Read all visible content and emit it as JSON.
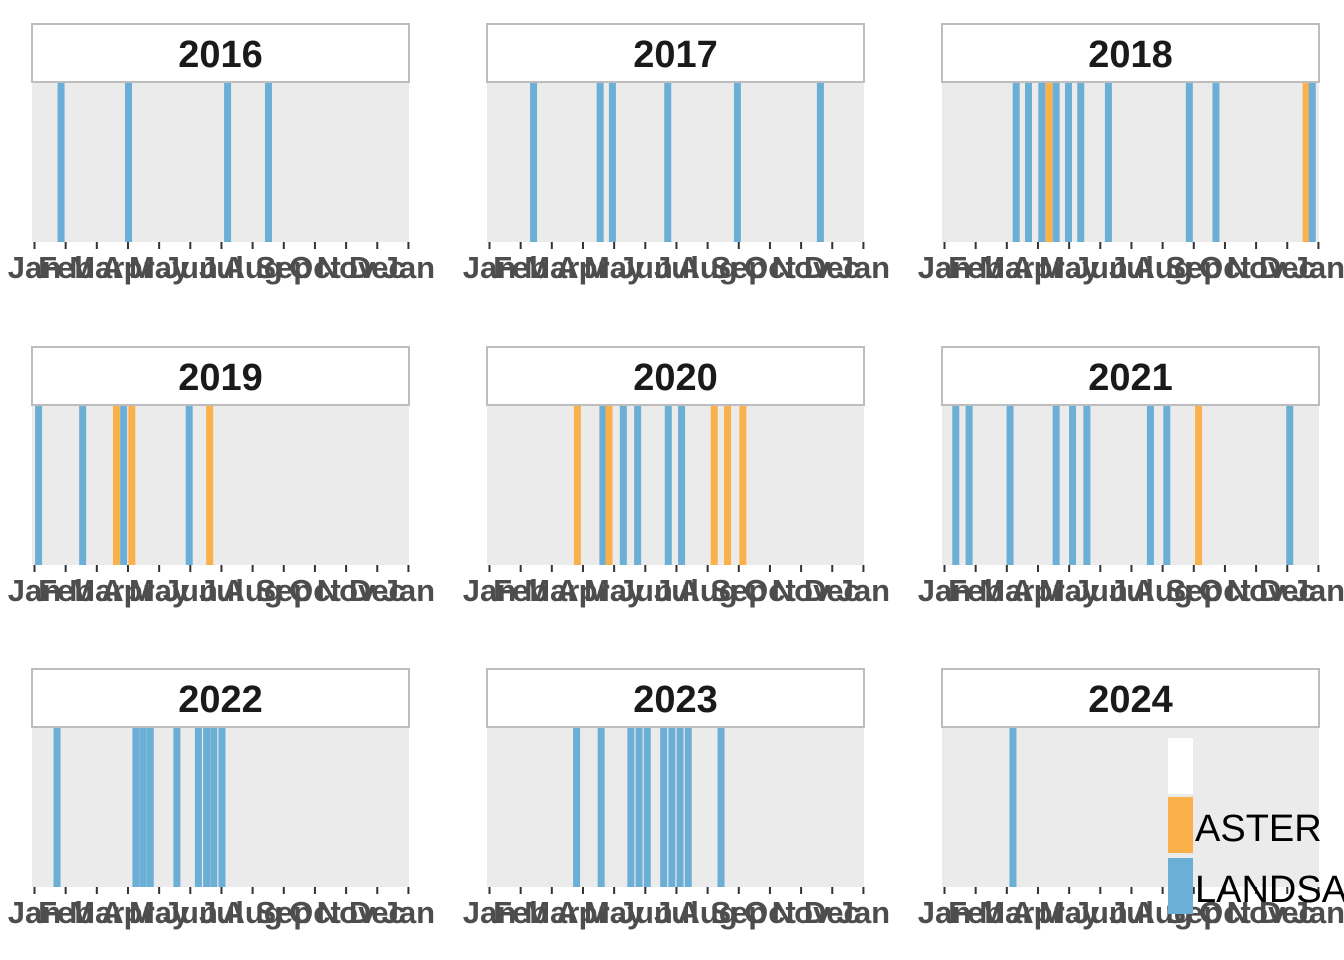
{
  "chart_data": {
    "type": "bar",
    "facet_by": "year",
    "x_tick_labels": [
      "Jan",
      "Feb",
      "Mar",
      "Apr",
      "May",
      "Jun",
      "Jul",
      "Aug",
      "Sep",
      "Oct",
      "Nov",
      "Dec",
      "Jan"
    ],
    "colors": {
      "panel_bg": "#ebebeb",
      "strip_bg": "#ffffff",
      "strip_border": "#bdbdbd",
      "ASTER": "#fbb14b",
      "LANDSAT": "#6baed6",
      "tick": "#333333",
      "tick_label": "#4d4d4d"
    },
    "legend": {
      "placement": "bottom-right",
      "entries": [
        {
          "name": "",
          "color": "#ffffff"
        },
        {
          "name": "ASTER",
          "color": "#fbb14b"
        },
        {
          "name": "LANDSAT",
          "color": "#6baed6"
        }
      ]
    },
    "panels": [
      {
        "year": "2016",
        "acquisitions": [
          {
            "date": "2016-01-27",
            "sensor": "LANDSAT"
          },
          {
            "date": "2016-04-02",
            "sensor": "LANDSAT"
          },
          {
            "date": "2016-07-08",
            "sensor": "LANDSAT"
          },
          {
            "date": "2016-08-17",
            "sensor": "LANDSAT"
          }
        ]
      },
      {
        "year": "2017",
        "acquisitions": [
          {
            "date": "2017-02-13",
            "sensor": "LANDSAT"
          },
          {
            "date": "2017-04-19",
            "sensor": "LANDSAT"
          },
          {
            "date": "2017-05-01",
            "sensor": "LANDSAT"
          },
          {
            "date": "2017-06-24",
            "sensor": "LANDSAT"
          },
          {
            "date": "2017-08-31",
            "sensor": "LANDSAT"
          },
          {
            "date": "2017-11-20",
            "sensor": "LANDSAT"
          }
        ]
      },
      {
        "year": "2018",
        "acquisitions": [
          {
            "date": "2018-03-12",
            "sensor": "LANDSAT"
          },
          {
            "date": "2018-03-24",
            "sensor": "LANDSAT"
          },
          {
            "date": "2018-04-06",
            "sensor": "LANDSAT"
          },
          {
            "date": "2018-04-13",
            "sensor": "ASTER"
          },
          {
            "date": "2018-04-20",
            "sensor": "LANDSAT"
          },
          {
            "date": "2018-05-02",
            "sensor": "LANDSAT"
          },
          {
            "date": "2018-05-14",
            "sensor": "LANDSAT"
          },
          {
            "date": "2018-06-10",
            "sensor": "LANDSAT"
          },
          {
            "date": "2018-08-28",
            "sensor": "LANDSAT"
          },
          {
            "date": "2018-09-23",
            "sensor": "LANDSAT"
          },
          {
            "date": "2018-12-20",
            "sensor": "ASTER"
          },
          {
            "date": "2018-12-26",
            "sensor": "LANDSAT"
          }
        ]
      },
      {
        "year": "2019",
        "acquisitions": [
          {
            "date": "2019-01-05",
            "sensor": "LANDSAT"
          },
          {
            "date": "2019-02-17",
            "sensor": "LANDSAT"
          },
          {
            "date": "2019-03-22",
            "sensor": "ASTER"
          },
          {
            "date": "2019-03-29",
            "sensor": "LANDSAT"
          },
          {
            "date": "2019-04-06",
            "sensor": "ASTER"
          },
          {
            "date": "2019-06-01",
            "sensor": "LANDSAT"
          },
          {
            "date": "2019-06-21",
            "sensor": "ASTER"
          }
        ]
      },
      {
        "year": "2020",
        "acquisitions": [
          {
            "date": "2020-03-27",
            "sensor": "ASTER"
          },
          {
            "date": "2020-04-21",
            "sensor": "LANDSAT"
          },
          {
            "date": "2020-04-27",
            "sensor": "ASTER"
          },
          {
            "date": "2020-05-11",
            "sensor": "LANDSAT"
          },
          {
            "date": "2020-05-25",
            "sensor": "LANDSAT"
          },
          {
            "date": "2020-06-24",
            "sensor": "LANDSAT"
          },
          {
            "date": "2020-07-07",
            "sensor": "LANDSAT"
          },
          {
            "date": "2020-08-08",
            "sensor": "ASTER"
          },
          {
            "date": "2020-08-21",
            "sensor": "ASTER"
          },
          {
            "date": "2020-09-05",
            "sensor": "ASTER"
          }
        ]
      },
      {
        "year": "2021",
        "acquisitions": [
          {
            "date": "2021-01-12",
            "sensor": "LANDSAT"
          },
          {
            "date": "2021-01-25",
            "sensor": "LANDSAT"
          },
          {
            "date": "2021-03-06",
            "sensor": "LANDSAT"
          },
          {
            "date": "2021-04-20",
            "sensor": "LANDSAT"
          },
          {
            "date": "2021-05-06",
            "sensor": "LANDSAT"
          },
          {
            "date": "2021-05-20",
            "sensor": "LANDSAT"
          },
          {
            "date": "2021-07-21",
            "sensor": "LANDSAT"
          },
          {
            "date": "2021-08-06",
            "sensor": "LANDSAT"
          },
          {
            "date": "2021-09-06",
            "sensor": "ASTER"
          },
          {
            "date": "2021-12-04",
            "sensor": "LANDSAT"
          }
        ]
      },
      {
        "year": "2022",
        "acquisitions": [
          {
            "date": "2022-01-23",
            "sensor": "LANDSAT"
          },
          {
            "date": "2022-04-10",
            "sensor": "LANDSAT"
          },
          {
            "date": "2022-04-17",
            "sensor": "LANDSAT"
          },
          {
            "date": "2022-04-24",
            "sensor": "LANDSAT"
          },
          {
            "date": "2022-05-20",
            "sensor": "LANDSAT"
          },
          {
            "date": "2022-06-10",
            "sensor": "LANDSAT"
          },
          {
            "date": "2022-06-18",
            "sensor": "LANDSAT"
          },
          {
            "date": "2022-06-25",
            "sensor": "LANDSAT"
          },
          {
            "date": "2022-07-03",
            "sensor": "LANDSAT"
          }
        ]
      },
      {
        "year": "2023",
        "acquisitions": [
          {
            "date": "2023-03-27",
            "sensor": "LANDSAT"
          },
          {
            "date": "2023-04-20",
            "sensor": "LANDSAT"
          },
          {
            "date": "2023-05-19",
            "sensor": "LANDSAT"
          },
          {
            "date": "2023-05-27",
            "sensor": "LANDSAT"
          },
          {
            "date": "2023-06-04",
            "sensor": "LANDSAT"
          },
          {
            "date": "2023-06-20",
            "sensor": "LANDSAT"
          },
          {
            "date": "2023-06-28",
            "sensor": "LANDSAT"
          },
          {
            "date": "2023-07-06",
            "sensor": "LANDSAT"
          },
          {
            "date": "2023-07-14",
            "sensor": "LANDSAT"
          },
          {
            "date": "2023-08-15",
            "sensor": "LANDSAT"
          }
        ]
      },
      {
        "year": "2024",
        "acquisitions": [
          {
            "date": "2024-03-08",
            "sensor": "LANDSAT"
          }
        ]
      }
    ]
  }
}
